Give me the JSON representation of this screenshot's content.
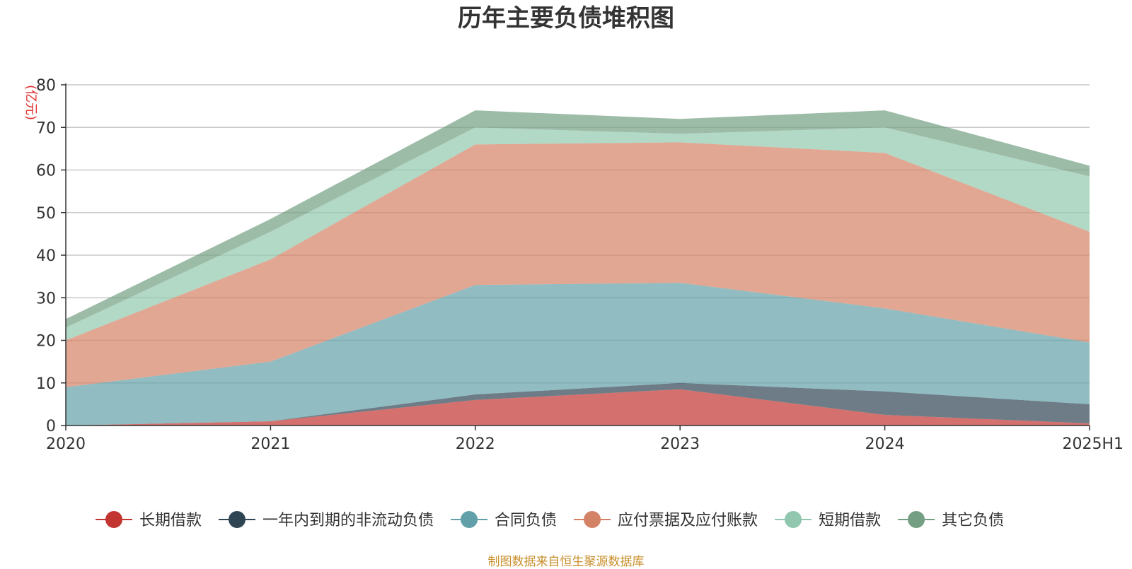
{
  "title": "历年主要负债堆积图",
  "source": "制图数据来自恒生聚源数据库",
  "chart_data": {
    "type": "area",
    "stacked": true,
    "categories": [
      "2020",
      "2021",
      "2022",
      "2023",
      "2024",
      "2025H1"
    ],
    "yunit": "(亿元)",
    "ylim": [
      0,
      80
    ],
    "yticks": [
      0,
      10,
      20,
      30,
      40,
      50,
      60,
      70,
      80
    ],
    "grid": true,
    "legend_position": "bottom",
    "series": [
      {
        "name": "长期借款",
        "color": "#c23531",
        "values": [
          0,
          1,
          6,
          8.5,
          2.5,
          0.5
        ]
      },
      {
        "name": "一年内到期的非流动负债",
        "color": "#2f4554",
        "values": [
          0,
          0,
          1.3,
          1.5,
          5.5,
          4.5
        ]
      },
      {
        "name": "合同负债",
        "color": "#61a0a8",
        "values": [
          9,
          14,
          25.7,
          23.5,
          19.5,
          14.5
        ]
      },
      {
        "name": "应付票据及应付账款",
        "color": "#d48265",
        "values": [
          11,
          24,
          33,
          33,
          36.5,
          26
        ]
      },
      {
        "name": "短期借款",
        "color": "#91c7ae",
        "values": [
          3,
          6.5,
          4,
          2,
          6,
          13
        ]
      },
      {
        "name": "其它负债",
        "color": "#749f83",
        "values": [
          2,
          3,
          4,
          3.5,
          4,
          2.5
        ]
      }
    ]
  }
}
